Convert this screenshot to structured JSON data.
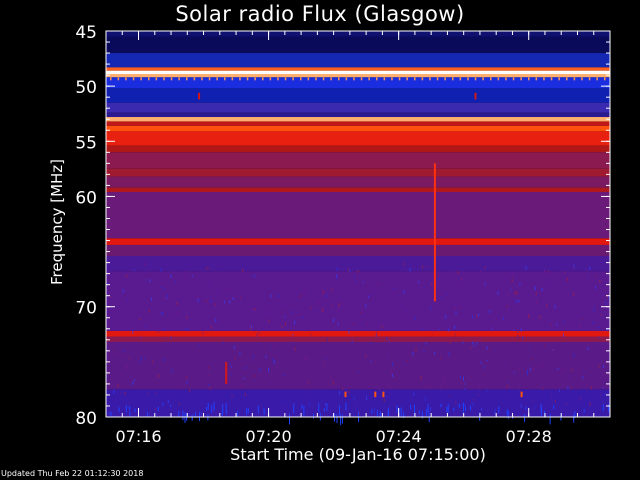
{
  "chart_data": {
    "type": "heatmap",
    "title": "Solar radio Flux (Glasgow)",
    "ylabel": "Frequency [MHz]",
    "xlabel": "Start Time (09-Jan-16 07:15:00)",
    "ylim": [
      80,
      45
    ],
    "xlim": [
      "07:15:00",
      "07:30:30"
    ],
    "y_ticks": [
      "45",
      "50",
      "55",
      "60",
      "70",
      "80"
    ],
    "x_ticks": [
      "07:16",
      "07:20",
      "07:24",
      "07:28"
    ],
    "colormap": [
      "#0a0a5a",
      "#1020c8",
      "#5a1a8c",
      "#9a2060",
      "#d01818",
      "#ff4010",
      "#ffb070",
      "#ffffff"
    ],
    "bands": [
      {
        "from": 45.0,
        "to": 45.5,
        "color": "#101070"
      },
      {
        "from": 45.5,
        "to": 47.0,
        "color": "#0a0a5a"
      },
      {
        "from": 47.0,
        "to": 48.3,
        "color": "#1428b4"
      },
      {
        "from": 48.3,
        "to": 48.6,
        "color": "#ff6020"
      },
      {
        "from": 48.6,
        "to": 48.9,
        "color": "#ffffff"
      },
      {
        "from": 48.9,
        "to": 49.2,
        "color": "#ffb070"
      },
      {
        "from": 49.2,
        "to": 50.2,
        "color": "#1a2ee0"
      },
      {
        "from": 50.2,
        "to": 51.5,
        "color": "#1020b0"
      },
      {
        "from": 51.5,
        "to": 52.4,
        "color": "#3a2ab0"
      },
      {
        "from": 52.4,
        "to": 52.8,
        "color": "#2a1a90"
      },
      {
        "from": 52.8,
        "to": 53.2,
        "color": "#ffb070"
      },
      {
        "from": 53.2,
        "to": 53.6,
        "color": "#c01818"
      },
      {
        "from": 53.6,
        "to": 54.1,
        "color": "#ff5010"
      },
      {
        "from": 54.1,
        "to": 55.4,
        "color": "#e82010"
      },
      {
        "from": 55.4,
        "to": 56.0,
        "color": "#b01818"
      },
      {
        "from": 56.0,
        "to": 57.5,
        "color": "#8a1a50"
      },
      {
        "from": 57.5,
        "to": 58.2,
        "color": "#a01a30"
      },
      {
        "from": 58.2,
        "to": 59.2,
        "color": "#7a1a60"
      },
      {
        "from": 59.2,
        "to": 59.6,
        "color": "#b01820"
      },
      {
        "from": 59.6,
        "to": 63.8,
        "color": "#6a1a78"
      },
      {
        "from": 63.8,
        "to": 64.4,
        "color": "#e01810"
      },
      {
        "from": 64.4,
        "to": 65.4,
        "color": "#6a1a70"
      },
      {
        "from": 65.4,
        "to": 66.8,
        "color": "#4a1a98"
      },
      {
        "from": 66.8,
        "to": 72.2,
        "color": "#5a1a90"
      },
      {
        "from": 72.2,
        "to": 72.7,
        "color": "#e01810"
      },
      {
        "from": 72.7,
        "to": 73.2,
        "color": "#8a1a50"
      },
      {
        "from": 73.2,
        "to": 77.5,
        "color": "#5a1a88"
      },
      {
        "from": 77.5,
        "to": 80.0,
        "color": "#3a1aa8"
      }
    ],
    "events": [
      {
        "t": "07:25:05",
        "f_from": 57.0,
        "f_to": 69.5,
        "color": "#ff3010"
      },
      {
        "t": "07:17:50",
        "f_from": 50.6,
        "f_to": 51.2,
        "color": "#d01818"
      },
      {
        "t": "07:26:20",
        "f_from": 50.6,
        "f_to": 51.2,
        "color": "#d01818"
      },
      {
        "t": "07:18:40",
        "f_from": 75.0,
        "f_to": 77.0,
        "color": "#d01818"
      },
      {
        "t": "07:22:20",
        "f_from": 77.7,
        "f_to": 78.2,
        "color": "#ff5010"
      },
      {
        "t": "07:23:15",
        "f_from": 77.7,
        "f_to": 78.2,
        "color": "#ff5010"
      },
      {
        "t": "07:23:30",
        "f_from": 77.7,
        "f_to": 78.2,
        "color": "#ff5010"
      },
      {
        "t": "07:27:45",
        "f_from": 77.7,
        "f_to": 78.2,
        "color": "#ff5010"
      }
    ]
  },
  "footer": {
    "updated": "Updated Thu Feb 22 01:12:30 2018"
  }
}
